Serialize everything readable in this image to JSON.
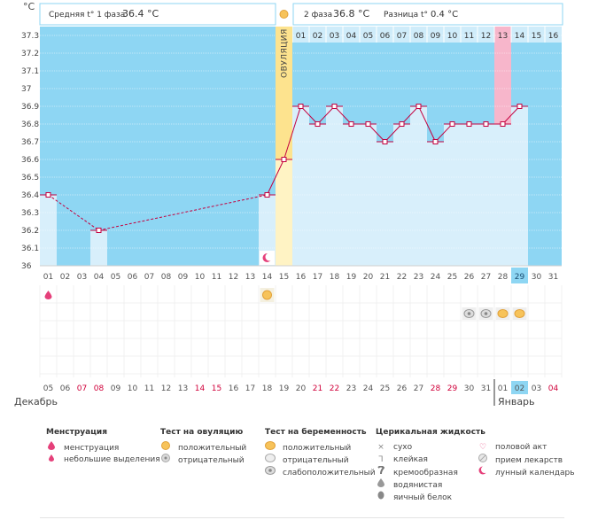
{
  "chart_data": {
    "type": "line",
    "unit_label": "°C",
    "y_ticks": [
      "37.3",
      "37.2",
      "37.1",
      "37",
      "36.9",
      "36.8",
      "36.7",
      "36.6",
      "36.5",
      "36.4",
      "36.3",
      "36.2",
      "36.1",
      "36"
    ],
    "ylim": [
      36.0,
      37.35
    ],
    "phase1": {
      "label": "Средняя t° 1 фаза",
      "value": "36.4 °C"
    },
    "phase2": {
      "label": "2 фаза",
      "value": "36.8 °C",
      "diff_label": "Разница t°",
      "diff_value": "0.4 °C"
    },
    "ovulation_label": "ОВУЛЯЦИЯ",
    "ovulation_cycle_day": 15,
    "phase2_day_labels": [
      "01",
      "02",
      "03",
      "04",
      "05",
      "06",
      "07",
      "08",
      "09",
      "10",
      "11",
      "12",
      "13",
      "14",
      "15",
      "16"
    ],
    "highlight_phase2_day": 13,
    "cycle_days": [
      "01",
      "02",
      "03",
      "04",
      "05",
      "06",
      "07",
      "08",
      "09",
      "10",
      "11",
      "12",
      "13",
      "14",
      "15",
      "16",
      "17",
      "18",
      "19",
      "20",
      "21",
      "22",
      "23",
      "24",
      "25",
      "26",
      "27",
      "28",
      "29",
      "30",
      "31"
    ],
    "today_cycle_day": 29,
    "temperatures": [
      {
        "day": 1,
        "value": 36.4
      },
      {
        "day": 4,
        "value": 36.2
      },
      {
        "day": 14,
        "value": 36.4
      },
      {
        "day": 15,
        "value": 36.6
      },
      {
        "day": 16,
        "value": 36.9
      },
      {
        "day": 17,
        "value": 36.8
      },
      {
        "day": 18,
        "value": 36.9
      },
      {
        "day": 19,
        "value": 36.8
      },
      {
        "day": 20,
        "value": 36.8
      },
      {
        "day": 21,
        "value": 36.7
      },
      {
        "day": 22,
        "value": 36.8
      },
      {
        "day": 23,
        "value": 36.9
      },
      {
        "day": 24,
        "value": 36.7
      },
      {
        "day": 25,
        "value": 36.8
      },
      {
        "day": 26,
        "value": 36.8
      },
      {
        "day": 27,
        "value": 36.8
      },
      {
        "day": 28,
        "value": 36.8
      },
      {
        "day": 29,
        "value": 36.9
      }
    ],
    "interpolated_segments": [
      [
        1,
        4
      ],
      [
        4,
        14
      ]
    ],
    "moon_day": 14,
    "menstruation_day": 1,
    "ovulation_test_positive_day": 14,
    "pregnancy_tests": [
      {
        "day": 26,
        "result": "negative"
      },
      {
        "day": 27,
        "result": "negative"
      },
      {
        "day": 28,
        "result": "positive"
      },
      {
        "day": 29,
        "result": "positive"
      }
    ],
    "dates": [
      {
        "d": "05",
        "red": false
      },
      {
        "d": "06",
        "red": false
      },
      {
        "d": "07",
        "red": true
      },
      {
        "d": "08",
        "red": true
      },
      {
        "d": "09",
        "red": false
      },
      {
        "d": "10",
        "red": false
      },
      {
        "d": "11",
        "red": false
      },
      {
        "d": "12",
        "red": false
      },
      {
        "d": "13",
        "red": false
      },
      {
        "d": "14",
        "red": true
      },
      {
        "d": "15",
        "red": true
      },
      {
        "d": "16",
        "red": false
      },
      {
        "d": "17",
        "red": false
      },
      {
        "d": "18",
        "red": false
      },
      {
        "d": "19",
        "red": false
      },
      {
        "d": "20",
        "red": false
      },
      {
        "d": "21",
        "red": true
      },
      {
        "d": "22",
        "red": true
      },
      {
        "d": "23",
        "red": false
      },
      {
        "d": "24",
        "red": false
      },
      {
        "d": "25",
        "red": false
      },
      {
        "d": "26",
        "red": false
      },
      {
        "d": "27",
        "red": false
      },
      {
        "d": "28",
        "red": true
      },
      {
        "d": "29",
        "red": true
      },
      {
        "d": "30",
        "red": false
      },
      {
        "d": "31",
        "red": false
      },
      {
        "d": "01",
        "red": false
      },
      {
        "d": "02",
        "red": false
      },
      {
        "d": "03",
        "red": false
      },
      {
        "d": "04",
        "red": true
      }
    ],
    "today_date_day": 29,
    "month_labels": {
      "december": "Декабрь",
      "january": "Январь"
    },
    "colors": {
      "phase1": "#8ed6f3",
      "phase2": "#d8effb",
      "ovulation": "#fde38e",
      "highlight": "#f7b6cb",
      "today": "#8ed6f3",
      "line": "#c4003f",
      "red_text": "#d0003a",
      "day_text": "#555555"
    }
  },
  "legend": {
    "menstruation": {
      "title": "Менструация",
      "items": [
        {
          "icon": "drop-large-icon",
          "label": "менструация"
        },
        {
          "icon": "drop-small-icon",
          "label": "небольшие выделения"
        }
      ]
    },
    "ovulation_test": {
      "title": "Тест на овуляцию",
      "items": [
        {
          "icon": "ovulation-test-positive-icon",
          "label": "положительный"
        },
        {
          "icon": "ovulation-test-negative-icon",
          "label": "отрицательный"
        }
      ]
    },
    "pregnancy_test": {
      "title": "Тест на беременность",
      "items": [
        {
          "icon": "pregnancy-test-positive-icon",
          "label": "положительный"
        },
        {
          "icon": "pregnancy-test-negative-icon",
          "label": "отрицательный"
        },
        {
          "icon": "pregnancy-test-weak-icon",
          "label": "слабоположительный"
        }
      ]
    },
    "cervical": {
      "title": "Церикальная жидкость",
      "items": [
        {
          "icon": "dry-icon",
          "label": "сухо"
        },
        {
          "icon": "sticky-icon",
          "label": "клейкая"
        },
        {
          "icon": "creamy-icon",
          "label": "кремообразная"
        },
        {
          "icon": "watery-icon",
          "label": "водянистая"
        },
        {
          "icon": "egg-white-icon",
          "label": "яичный белок"
        }
      ]
    },
    "other": {
      "items": [
        {
          "icon": "heart-icon",
          "label": "половой акт"
        },
        {
          "icon": "pill-icon",
          "label": "прием лекарств"
        },
        {
          "icon": "moon-icon",
          "label": "лунный календарь"
        }
      ]
    }
  }
}
